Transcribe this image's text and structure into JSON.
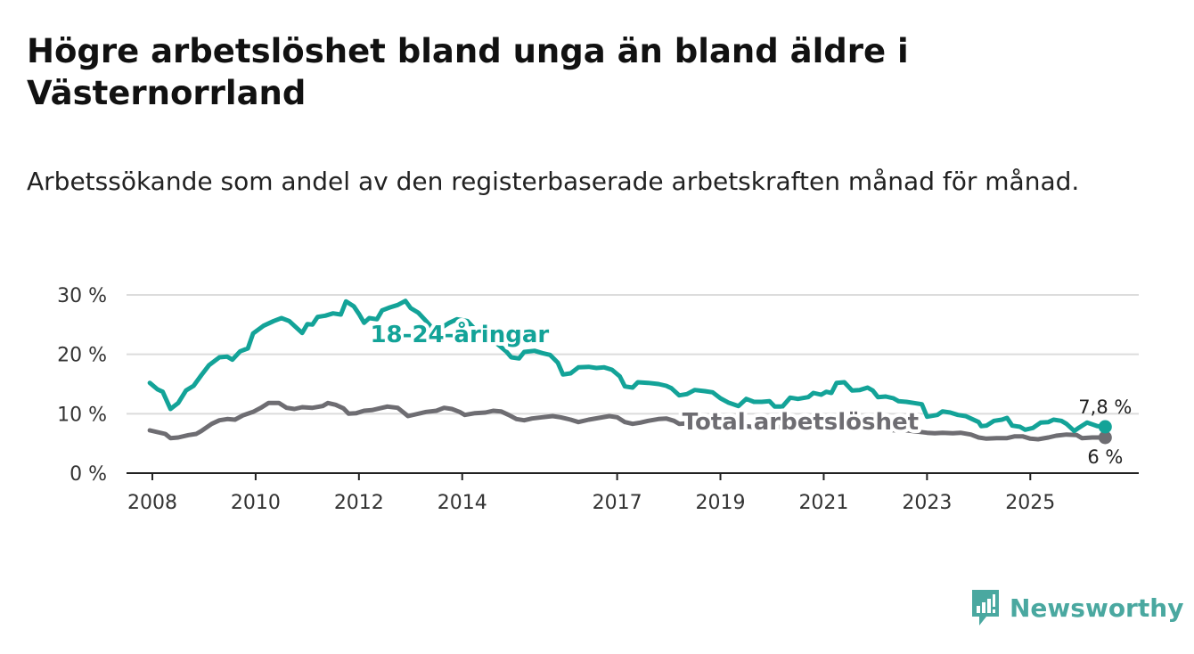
{
  "title": "Högre arbetslöshet bland unga än bland äldre i Västernorrland",
  "subtitle": "Arbetssökande som andel av den registerbaserade arbetskraften månad för månad.",
  "brand": "Newsworthy",
  "colors": {
    "youth": "#13a398",
    "total": "#6e6d72",
    "grid": "#dcdcdc",
    "axis": "#222222",
    "brand": "#4aa8a0"
  },
  "chart_data": {
    "type": "line",
    "title": "Högre arbetslöshet bland unga än bland äldre i Västernorrland",
    "xlabel": "",
    "ylabel": "",
    "ylim": [
      0,
      30
    ],
    "xlim": [
      2007.5,
      2027.1
    ],
    "y_ticks": [
      0,
      10,
      20,
      30
    ],
    "y_tick_labels": [
      "0 %",
      "10 %",
      "20 %",
      "30 %"
    ],
    "x_ticks": [
      2008,
      2010,
      2012,
      2014,
      2017,
      2019,
      2021,
      2023,
      2025
    ],
    "x_tick_labels": [
      "2008",
      "2010",
      "2012",
      "2014",
      "2017",
      "2019",
      "2021",
      "2023",
      "2025"
    ],
    "grid": true,
    "series": [
      {
        "name": "18-24-åringar",
        "key": "youth",
        "end_label": "7,8 %",
        "points": [
          [
            2007.95,
            15.2
          ],
          [
            2008.1,
            14.1
          ],
          [
            2008.2,
            13.7
          ],
          [
            2008.35,
            10.8
          ],
          [
            2008.5,
            11.8
          ],
          [
            2008.65,
            13.9
          ],
          [
            2008.8,
            14.7
          ],
          [
            2008.95,
            16.5
          ],
          [
            2009.1,
            18.2
          ],
          [
            2009.3,
            19.5
          ],
          [
            2009.45,
            19.6
          ],
          [
            2009.55,
            19.1
          ],
          [
            2009.7,
            20.5
          ],
          [
            2009.85,
            21.0
          ],
          [
            2009.95,
            23.5
          ],
          [
            2010.15,
            24.8
          ],
          [
            2010.35,
            25.6
          ],
          [
            2010.5,
            26.1
          ],
          [
            2010.65,
            25.6
          ],
          [
            2010.75,
            24.8
          ],
          [
            2010.9,
            23.6
          ],
          [
            2011.0,
            25.1
          ],
          [
            2011.1,
            25.0
          ],
          [
            2011.2,
            26.3
          ],
          [
            2011.35,
            26.5
          ],
          [
            2011.5,
            26.9
          ],
          [
            2011.65,
            26.7
          ],
          [
            2011.75,
            28.9
          ],
          [
            2011.9,
            28.1
          ],
          [
            2012.0,
            26.8
          ],
          [
            2012.1,
            25.3
          ],
          [
            2012.2,
            26.1
          ],
          [
            2012.35,
            25.9
          ],
          [
            2012.45,
            27.4
          ],
          [
            2012.6,
            27.9
          ],
          [
            2012.75,
            28.3
          ],
          [
            2012.9,
            29.0
          ],
          [
            2013.0,
            27.8
          ],
          [
            2013.15,
            27.0
          ],
          [
            2013.3,
            25.6
          ],
          [
            2013.45,
            24.1
          ],
          [
            2013.6,
            24.5
          ],
          [
            2013.75,
            25.3
          ],
          [
            2013.9,
            25.9
          ],
          [
            2014.1,
            25.6
          ],
          [
            2014.25,
            24.2
          ],
          [
            2014.45,
            23.1
          ],
          [
            2014.7,
            21.6
          ],
          [
            2014.85,
            20.5
          ],
          [
            2014.95,
            19.5
          ],
          [
            2015.1,
            19.3
          ],
          [
            2015.2,
            20.4
          ],
          [
            2015.4,
            20.6
          ],
          [
            2015.55,
            20.2
          ],
          [
            2015.7,
            19.9
          ],
          [
            2015.85,
            18.6
          ],
          [
            2015.95,
            16.6
          ],
          [
            2016.1,
            16.8
          ],
          [
            2016.25,
            17.8
          ],
          [
            2016.45,
            17.9
          ],
          [
            2016.6,
            17.7
          ],
          [
            2016.75,
            17.8
          ],
          [
            2016.9,
            17.4
          ],
          [
            2017.05,
            16.3
          ],
          [
            2017.15,
            14.6
          ],
          [
            2017.3,
            14.4
          ],
          [
            2017.4,
            15.3
          ],
          [
            2017.6,
            15.2
          ],
          [
            2017.8,
            15.0
          ],
          [
            2017.95,
            14.7
          ],
          [
            2018.05,
            14.3
          ],
          [
            2018.2,
            13.1
          ],
          [
            2018.35,
            13.3
          ],
          [
            2018.5,
            14.0
          ],
          [
            2018.7,
            13.8
          ],
          [
            2018.85,
            13.6
          ],
          [
            2019.0,
            12.6
          ],
          [
            2019.15,
            11.9
          ],
          [
            2019.35,
            11.3
          ],
          [
            2019.5,
            12.5
          ],
          [
            2019.65,
            12.0
          ],
          [
            2019.8,
            12.0
          ],
          [
            2019.95,
            12.1
          ],
          [
            2020.05,
            11.2
          ],
          [
            2020.2,
            11.2
          ],
          [
            2020.35,
            12.7
          ],
          [
            2020.5,
            12.5
          ],
          [
            2020.7,
            12.8
          ],
          [
            2020.8,
            13.5
          ],
          [
            2020.95,
            13.2
          ],
          [
            2021.05,
            13.7
          ],
          [
            2021.15,
            13.5
          ],
          [
            2021.25,
            15.2
          ],
          [
            2021.4,
            15.3
          ],
          [
            2021.55,
            13.9
          ],
          [
            2021.7,
            14.0
          ],
          [
            2021.85,
            14.4
          ],
          [
            2021.95,
            13.9
          ],
          [
            2022.05,
            12.8
          ],
          [
            2022.2,
            12.9
          ],
          [
            2022.35,
            12.6
          ],
          [
            2022.45,
            12.1
          ],
          [
            2022.6,
            12.0
          ],
          [
            2022.75,
            11.8
          ],
          [
            2022.9,
            11.6
          ],
          [
            2023.0,
            9.5
          ],
          [
            2023.2,
            9.8
          ],
          [
            2023.3,
            10.4
          ],
          [
            2023.45,
            10.2
          ],
          [
            2023.6,
            9.8
          ],
          [
            2023.75,
            9.6
          ],
          [
            2023.85,
            9.2
          ],
          [
            2024.0,
            8.6
          ],
          [
            2024.05,
            7.9
          ],
          [
            2024.15,
            8.0
          ],
          [
            2024.3,
            8.8
          ],
          [
            2024.45,
            9.0
          ],
          [
            2024.55,
            9.3
          ],
          [
            2024.65,
            8.0
          ],
          [
            2024.8,
            7.8
          ],
          [
            2024.9,
            7.3
          ],
          [
            2025.05,
            7.6
          ],
          [
            2025.2,
            8.5
          ],
          [
            2025.35,
            8.6
          ],
          [
            2025.45,
            9.0
          ],
          [
            2025.6,
            8.8
          ],
          [
            2025.7,
            8.3
          ],
          [
            2025.85,
            7.1
          ],
          [
            2025.95,
            7.7
          ],
          [
            2026.1,
            8.5
          ],
          [
            2026.3,
            7.9
          ],
          [
            2026.45,
            7.8
          ]
        ]
      },
      {
        "name": "Total arbetslöshet",
        "key": "total",
        "end_label": "6 %",
        "points": [
          [
            2007.95,
            7.2
          ],
          [
            2008.1,
            6.9
          ],
          [
            2008.25,
            6.6
          ],
          [
            2008.35,
            5.9
          ],
          [
            2008.5,
            6.0
          ],
          [
            2008.7,
            6.4
          ],
          [
            2008.85,
            6.6
          ],
          [
            2008.95,
            7.1
          ],
          [
            2009.15,
            8.3
          ],
          [
            2009.3,
            8.9
          ],
          [
            2009.45,
            9.1
          ],
          [
            2009.6,
            9.0
          ],
          [
            2009.75,
            9.7
          ],
          [
            2009.95,
            10.3
          ],
          [
            2010.1,
            11.0
          ],
          [
            2010.25,
            11.8
          ],
          [
            2010.45,
            11.8
          ],
          [
            2010.6,
            11.0
          ],
          [
            2010.75,
            10.8
          ],
          [
            2010.9,
            11.1
          ],
          [
            2011.1,
            11.0
          ],
          [
            2011.3,
            11.3
          ],
          [
            2011.4,
            11.8
          ],
          [
            2011.55,
            11.5
          ],
          [
            2011.7,
            10.9
          ],
          [
            2011.8,
            10.0
          ],
          [
            2011.95,
            10.1
          ],
          [
            2012.1,
            10.5
          ],
          [
            2012.25,
            10.6
          ],
          [
            2012.4,
            10.9
          ],
          [
            2012.55,
            11.2
          ],
          [
            2012.75,
            11.0
          ],
          [
            2012.85,
            10.3
          ],
          [
            2012.95,
            9.6
          ],
          [
            2013.1,
            9.9
          ],
          [
            2013.3,
            10.3
          ],
          [
            2013.5,
            10.5
          ],
          [
            2013.65,
            11.0
          ],
          [
            2013.8,
            10.8
          ],
          [
            2013.95,
            10.3
          ],
          [
            2014.05,
            9.8
          ],
          [
            2014.25,
            10.1
          ],
          [
            2014.45,
            10.2
          ],
          [
            2014.6,
            10.5
          ],
          [
            2014.75,
            10.4
          ],
          [
            2014.9,
            9.8
          ],
          [
            2015.05,
            9.1
          ],
          [
            2015.2,
            8.9
          ],
          [
            2015.35,
            9.2
          ],
          [
            2015.55,
            9.4
          ],
          [
            2015.75,
            9.6
          ],
          [
            2015.9,
            9.4
          ],
          [
            2016.1,
            9.0
          ],
          [
            2016.25,
            8.6
          ],
          [
            2016.45,
            9.0
          ],
          [
            2016.65,
            9.3
          ],
          [
            2016.85,
            9.6
          ],
          [
            2017.0,
            9.4
          ],
          [
            2017.15,
            8.6
          ],
          [
            2017.3,
            8.3
          ],
          [
            2017.45,
            8.5
          ],
          [
            2017.6,
            8.8
          ],
          [
            2017.8,
            9.1
          ],
          [
            2017.95,
            9.2
          ],
          [
            2018.1,
            8.8
          ],
          [
            2018.2,
            8.3
          ],
          [
            2018.4,
            8.4
          ],
          [
            2018.6,
            8.6
          ],
          [
            2018.8,
            8.3
          ],
          [
            2019.0,
            8.1
          ],
          [
            2019.2,
            7.9
          ],
          [
            2019.4,
            8.0
          ],
          [
            2019.6,
            7.8
          ],
          [
            2019.8,
            7.6
          ],
          [
            2020.0,
            7.7
          ],
          [
            2020.2,
            7.8
          ],
          [
            2020.4,
            8.3
          ],
          [
            2020.6,
            8.7
          ],
          [
            2020.8,
            8.5
          ],
          [
            2021.0,
            8.3
          ],
          [
            2021.2,
            8.2
          ],
          [
            2021.4,
            7.9
          ],
          [
            2021.6,
            7.7
          ],
          [
            2021.8,
            7.6
          ],
          [
            2022.0,
            7.4
          ],
          [
            2022.2,
            7.3
          ],
          [
            2022.4,
            7.2
          ],
          [
            2022.6,
            7.2
          ],
          [
            2022.8,
            7.0
          ],
          [
            2023.0,
            6.8
          ],
          [
            2023.15,
            6.7
          ],
          [
            2023.3,
            6.8
          ],
          [
            2023.5,
            6.7
          ],
          [
            2023.65,
            6.8
          ],
          [
            2023.85,
            6.5
          ],
          [
            2024.0,
            6.0
          ],
          [
            2024.15,
            5.8
          ],
          [
            2024.35,
            5.9
          ],
          [
            2024.55,
            5.9
          ],
          [
            2024.7,
            6.2
          ],
          [
            2024.85,
            6.2
          ],
          [
            2025.0,
            5.8
          ],
          [
            2025.15,
            5.7
          ],
          [
            2025.35,
            6.0
          ],
          [
            2025.5,
            6.3
          ],
          [
            2025.7,
            6.5
          ],
          [
            2025.9,
            6.4
          ],
          [
            2026.0,
            5.9
          ],
          [
            2026.2,
            6.0
          ],
          [
            2026.45,
            6.0
          ]
        ]
      }
    ],
    "annotations": [
      {
        "text": "18-24-åringar",
        "series": "youth",
        "x": 2013.95,
        "y": 23.4
      },
      {
        "text": "Total arbetslöshet",
        "series": "total",
        "x": 2020.55,
        "y": 8.7
      }
    ]
  }
}
